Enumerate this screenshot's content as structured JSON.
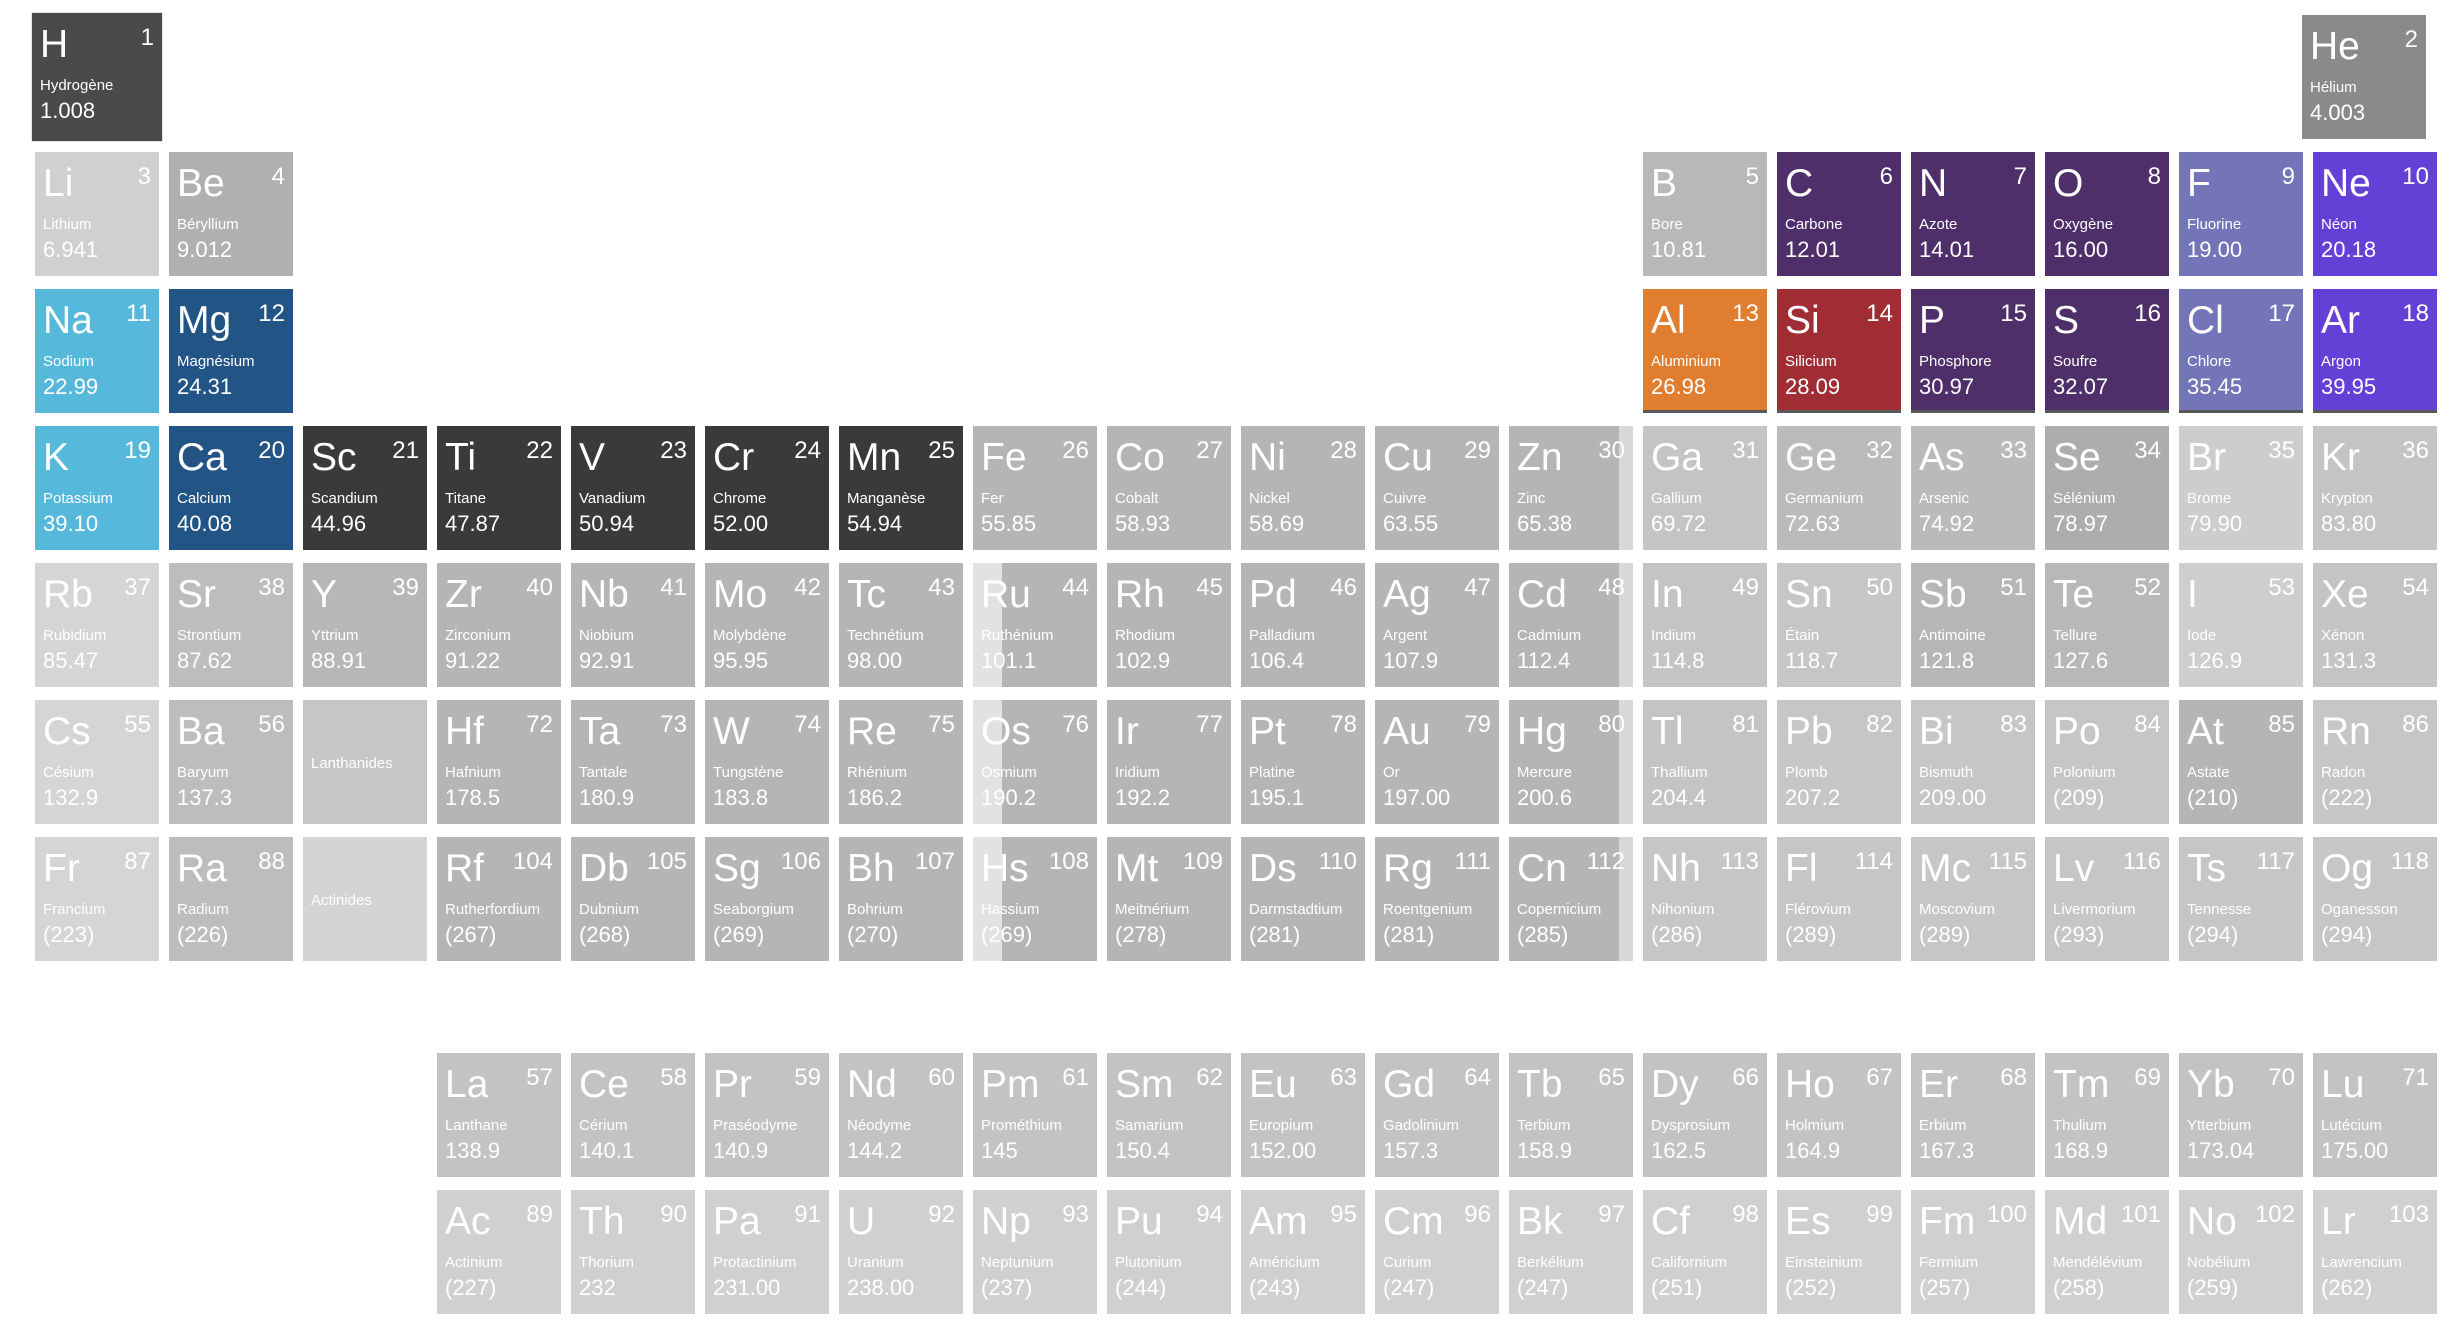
{
  "placeholders": {
    "lanthanides": "Lanthanides",
    "actinides": "Actinides"
  },
  "elements": [
    {
      "n": "1",
      "sym": "H",
      "name": "Hydrogène",
      "mass": "1.008",
      "g": 1,
      "p": 1,
      "color": "#4a4a4a"
    },
    {
      "n": "2",
      "sym": "He",
      "name": "Hélium",
      "mass": "4.003",
      "g": 18,
      "p": 1,
      "color": "#8a8a8a"
    },
    {
      "n": "3",
      "sym": "Li",
      "name": "Lithium",
      "mass": "6.941",
      "g": 1,
      "p": 2,
      "color": "#d0d0d0"
    },
    {
      "n": "4",
      "sym": "Be",
      "name": "Béryllium",
      "mass": "9.012",
      "g": 2,
      "p": 2,
      "color": "#b0b0b0"
    },
    {
      "n": "5",
      "sym": "B",
      "name": "Bore",
      "mass": "10.81",
      "g": 13,
      "p": 2,
      "color": "#b8b8b8"
    },
    {
      "n": "6",
      "sym": "C",
      "name": "Carbone",
      "mass": "12.01",
      "g": 14,
      "p": 2,
      "color": "#4e2f6a"
    },
    {
      "n": "7",
      "sym": "N",
      "name": "Azote",
      "mass": "14.01",
      "g": 15,
      "p": 2,
      "color": "#4e2f6a"
    },
    {
      "n": "8",
      "sym": "O",
      "name": "Oxygène",
      "mass": "16.00",
      "g": 16,
      "p": 2,
      "color": "#4e2f6a"
    },
    {
      "n": "9",
      "sym": "F",
      "name": "Fluorine",
      "mass": "19.00",
      "g": 17,
      "p": 2,
      "color": "#7474b8"
    },
    {
      "n": "10",
      "sym": "Ne",
      "name": "Néon",
      "mass": "20.18",
      "g": 18,
      "p": 2,
      "color": "#6440d6"
    },
    {
      "n": "11",
      "sym": "Na",
      "name": "Sodium",
      "mass": "22.99",
      "g": 1,
      "p": 3,
      "color": "#56b8db"
    },
    {
      "n": "12",
      "sym": "Mg",
      "name": "Magnésium",
      "mass": "24.31",
      "g": 2,
      "p": 3,
      "color": "#225486"
    },
    {
      "n": "13",
      "sym": "Al",
      "name": "Aluminium",
      "mass": "26.98",
      "g": 13,
      "p": 3,
      "color": "#e07d2f"
    },
    {
      "n": "14",
      "sym": "Si",
      "name": "Silicium",
      "mass": "28.09",
      "g": 14,
      "p": 3,
      "color": "#a02d33"
    },
    {
      "n": "15",
      "sym": "P",
      "name": "Phosphore",
      "mass": "30.97",
      "g": 15,
      "p": 3,
      "color": "#4e2f6a"
    },
    {
      "n": "16",
      "sym": "S",
      "name": "Soufre",
      "mass": "32.07",
      "g": 16,
      "p": 3,
      "color": "#4e2f6a"
    },
    {
      "n": "17",
      "sym": "Cl",
      "name": "Chlore",
      "mass": "35.45",
      "g": 17,
      "p": 3,
      "color": "#7474b8"
    },
    {
      "n": "18",
      "sym": "Ar",
      "name": "Argon",
      "mass": "39.95",
      "g": 18,
      "p": 3,
      "color": "#6440d6"
    },
    {
      "n": "19",
      "sym": "K",
      "name": "Potassium",
      "mass": "39.10",
      "g": 1,
      "p": 4,
      "color": "#56b8db"
    },
    {
      "n": "20",
      "sym": "Ca",
      "name": "Calcium",
      "mass": "40.08",
      "g": 2,
      "p": 4,
      "color": "#225486"
    },
    {
      "n": "21",
      "sym": "Sc",
      "name": "Scandium",
      "mass": "44.96",
      "g": 3,
      "p": 4,
      "color": "#3a3a3c"
    },
    {
      "n": "22",
      "sym": "Ti",
      "name": "Titane",
      "mass": "47.87",
      "g": 4,
      "p": 4,
      "color": "#3a3a3c"
    },
    {
      "n": "23",
      "sym": "V",
      "name": "Vanadium",
      "mass": "50.94",
      "g": 5,
      "p": 4,
      "color": "#3a3a3c"
    },
    {
      "n": "24",
      "sym": "Cr",
      "name": "Chrome",
      "mass": "52.00",
      "g": 6,
      "p": 4,
      "color": "#3a3a3c"
    },
    {
      "n": "25",
      "sym": "Mn",
      "name": "Manganèse",
      "mass": "54.94",
      "g": 7,
      "p": 4,
      "color": "#3a3a3c"
    },
    {
      "n": "26",
      "sym": "Fe",
      "name": "Fer",
      "mass": "55.85",
      "g": 8,
      "p": 4,
      "color": "#b5b5b5"
    },
    {
      "n": "27",
      "sym": "Co",
      "name": "Cobalt",
      "mass": "58.93",
      "g": 9,
      "p": 4,
      "color": "#b5b5b5"
    },
    {
      "n": "28",
      "sym": "Ni",
      "name": "Nickel",
      "mass": "58.69",
      "g": 10,
      "p": 4,
      "color": "#b5b5b5"
    },
    {
      "n": "29",
      "sym": "Cu",
      "name": "Cuivre",
      "mass": "63.55",
      "g": 11,
      "p": 4,
      "color": "#b5b5b5"
    },
    {
      "n": "30",
      "sym": "Zn",
      "name": "Zinc",
      "mass": "65.38",
      "g": 12,
      "p": 4,
      "color": "#b5b5b5"
    },
    {
      "n": "31",
      "sym": "Ga",
      "name": "Gallium",
      "mass": "69.72",
      "g": 13,
      "p": 4,
      "color": "#c4c4c4"
    },
    {
      "n": "32",
      "sym": "Ge",
      "name": "Germanium",
      "mass": "72.63",
      "g": 14,
      "p": 4,
      "color": "#bbbbbb"
    },
    {
      "n": "33",
      "sym": "As",
      "name": "Arsenic",
      "mass": "74.92",
      "g": 15,
      "p": 4,
      "color": "#bababa"
    },
    {
      "n": "34",
      "sym": "Se",
      "name": "Sélénium",
      "mass": "78.97",
      "g": 16,
      "p": 4,
      "color": "#adadad"
    },
    {
      "n": "35",
      "sym": "Br",
      "name": "Brome",
      "mass": "79.90",
      "g": 17,
      "p": 4,
      "color": "#cdcdcd"
    },
    {
      "n": "36",
      "sym": "Kr",
      "name": "Krypton",
      "mass": "83.80",
      "g": 18,
      "p": 4,
      "color": "#c4c4c4"
    },
    {
      "n": "37",
      "sym": "Rb",
      "name": "Rubidium",
      "mass": "85.47",
      "g": 1,
      "p": 5,
      "color": "#d5d5d5"
    },
    {
      "n": "38",
      "sym": "Sr",
      "name": "Strontium",
      "mass": "87.62",
      "g": 2,
      "p": 5,
      "color": "#bdbdbd"
    },
    {
      "n": "39",
      "sym": "Y",
      "name": "Yttrium",
      "mass": "88.91",
      "g": 3,
      "p": 5,
      "color": "#b7b7b7"
    },
    {
      "n": "40",
      "sym": "Zr",
      "name": "Zirconium",
      "mass": "91.22",
      "g": 4,
      "p": 5,
      "color": "#b5b5b5"
    },
    {
      "n": "41",
      "sym": "Nb",
      "name": "Niobium",
      "mass": "92.91",
      "g": 5,
      "p": 5,
      "color": "#b5b5b5"
    },
    {
      "n": "42",
      "sym": "Mo",
      "name": "Molybdène",
      "mass": "95.95",
      "g": 6,
      "p": 5,
      "color": "#b5b5b5"
    },
    {
      "n": "43",
      "sym": "Tc",
      "name": "Technétium",
      "mass": "98.00",
      "g": 7,
      "p": 5,
      "color": "#b5b5b5"
    },
    {
      "n": "44",
      "sym": "Ru",
      "name": "Ruthénium",
      "mass": "101.1",
      "g": 8,
      "p": 5,
      "color": "#b5b5b5"
    },
    {
      "n": "45",
      "sym": "Rh",
      "name": "Rhodium",
      "mass": "102.9",
      "g": 9,
      "p": 5,
      "color": "#b5b5b5"
    },
    {
      "n": "46",
      "sym": "Pd",
      "name": "Palladium",
      "mass": "106.4",
      "g": 10,
      "p": 5,
      "color": "#b5b5b5"
    },
    {
      "n": "47",
      "sym": "Ag",
      "name": "Argent",
      "mass": "107.9",
      "g": 11,
      "p": 5,
      "color": "#b5b5b5"
    },
    {
      "n": "48",
      "sym": "Cd",
      "name": "Cadmium",
      "mass": "112.4",
      "g": 12,
      "p": 5,
      "color": "#b5b5b5"
    },
    {
      "n": "49",
      "sym": "In",
      "name": "Indium",
      "mass": "114.8",
      "g": 13,
      "p": 5,
      "color": "#c4c4c4"
    },
    {
      "n": "50",
      "sym": "Sn",
      "name": "Étain",
      "mass": "118.7",
      "g": 14,
      "p": 5,
      "color": "#c6c6c6"
    },
    {
      "n": "51",
      "sym": "Sb",
      "name": "Antimoine",
      "mass": "121.8",
      "g": 15,
      "p": 5,
      "color": "#b6b6b6"
    },
    {
      "n": "52",
      "sym": "Te",
      "name": "Tellure",
      "mass": "127.6",
      "g": 16,
      "p": 5,
      "color": "#b8b8b8"
    },
    {
      "n": "53",
      "sym": "I",
      "name": "Iode",
      "mass": "126.9",
      "g": 17,
      "p": 5,
      "color": "#cecece"
    },
    {
      "n": "54",
      "sym": "Xe",
      "name": "Xénon",
      "mass": "131.3",
      "g": 18,
      "p": 5,
      "color": "#c4c4c4"
    },
    {
      "n": "55",
      "sym": "Cs",
      "name": "Césium",
      "mass": "132.9",
      "g": 1,
      "p": 6,
      "color": "#d5d5d5"
    },
    {
      "n": "56",
      "sym": "Ba",
      "name": "Baryum",
      "mass": "137.3",
      "g": 2,
      "p": 6,
      "color": "#bdbdbd"
    },
    {
      "n": "57",
      "sym": "La",
      "name": "Lanthane",
      "mass": "138.9",
      "series": "lanthanide",
      "color": "#c3c3c3"
    },
    {
      "n": "58",
      "sym": "Ce",
      "name": "Cérium",
      "mass": "140.1",
      "series": "lanthanide",
      "color": "#c3c3c3"
    },
    {
      "n": "59",
      "sym": "Pr",
      "name": "Praséodyme",
      "mass": "140.9",
      "series": "lanthanide",
      "color": "#c3c3c3"
    },
    {
      "n": "60",
      "sym": "Nd",
      "name": "Néodyme",
      "mass": "144.2",
      "series": "lanthanide",
      "color": "#c3c3c3"
    },
    {
      "n": "61",
      "sym": "Pm",
      "name": "Prométhium",
      "mass": "145",
      "series": "lanthanide",
      "color": "#c3c3c3"
    },
    {
      "n": "62",
      "sym": "Sm",
      "name": "Samarium",
      "mass": "150.4",
      "series": "lanthanide",
      "color": "#c3c3c3"
    },
    {
      "n": "63",
      "sym": "Eu",
      "name": "Europium",
      "mass": "152.00",
      "series": "lanthanide",
      "color": "#c3c3c3"
    },
    {
      "n": "64",
      "sym": "Gd",
      "name": "Gadolinium",
      "mass": "157.3",
      "series": "lanthanide",
      "color": "#c3c3c3"
    },
    {
      "n": "65",
      "sym": "Tb",
      "name": "Terbium",
      "mass": "158.9",
      "series": "lanthanide",
      "color": "#c3c3c3"
    },
    {
      "n": "66",
      "sym": "Dy",
      "name": "Dysprosium",
      "mass": "162.5",
      "series": "lanthanide",
      "color": "#c3c3c3"
    },
    {
      "n": "67",
      "sym": "Ho",
      "name": "Holmium",
      "mass": "164.9",
      "series": "lanthanide",
      "color": "#c3c3c3"
    },
    {
      "n": "68",
      "sym": "Er",
      "name": "Erbium",
      "mass": "167.3",
      "series": "lanthanide",
      "color": "#c3c3c3"
    },
    {
      "n": "69",
      "sym": "Tm",
      "name": "Thulium",
      "mass": "168.9",
      "series": "lanthanide",
      "color": "#c3c3c3"
    },
    {
      "n": "70",
      "sym": "Yb",
      "name": "Ytterbium",
      "mass": "173.04",
      "series": "lanthanide",
      "color": "#c3c3c3"
    },
    {
      "n": "71",
      "sym": "Lu",
      "name": "Lutécium",
      "mass": "175.00",
      "series": "lanthanide",
      "color": "#c3c3c3"
    },
    {
      "n": "72",
      "sym": "Hf",
      "name": "Hafnium",
      "mass": "178.5",
      "g": 4,
      "p": 6,
      "color": "#b5b5b5"
    },
    {
      "n": "73",
      "sym": "Ta",
      "name": "Tantale",
      "mass": "180.9",
      "g": 5,
      "p": 6,
      "color": "#b5b5b5"
    },
    {
      "n": "74",
      "sym": "W",
      "name": "Tungstène",
      "mass": "183.8",
      "g": 6,
      "p": 6,
      "color": "#b5b5b5"
    },
    {
      "n": "75",
      "sym": "Re",
      "name": "Rhénium",
      "mass": "186.2",
      "g": 7,
      "p": 6,
      "color": "#b5b5b5"
    },
    {
      "n": "76",
      "sym": "Os",
      "name": "Osmium",
      "mass": "190.2",
      "g": 8,
      "p": 6,
      "color": "#b5b5b5"
    },
    {
      "n": "77",
      "sym": "Ir",
      "name": "Iridium",
      "mass": "192.2",
      "g": 9,
      "p": 6,
      "color": "#b5b5b5"
    },
    {
      "n": "78",
      "sym": "Pt",
      "name": "Platine",
      "mass": "195.1",
      "g": 10,
      "p": 6,
      "color": "#b5b5b5"
    },
    {
      "n": "79",
      "sym": "Au",
      "name": "Or",
      "mass": "197.00",
      "g": 11,
      "p": 6,
      "color": "#b5b5b5"
    },
    {
      "n": "80",
      "sym": "Hg",
      "name": "Mercure",
      "mass": "200.6",
      "g": 12,
      "p": 6,
      "color": "#b5b5b5"
    },
    {
      "n": "81",
      "sym": "Tl",
      "name": "Thallium",
      "mass": "204.4",
      "g": 13,
      "p": 6,
      "color": "#c4c4c4"
    },
    {
      "n": "82",
      "sym": "Pb",
      "name": "Plomb",
      "mass": "207.2",
      "g": 14,
      "p": 6,
      "color": "#c6c6c6"
    },
    {
      "n": "83",
      "sym": "Bi",
      "name": "Bismuth",
      "mass": "209.00",
      "g": 15,
      "p": 6,
      "color": "#c6c6c6"
    },
    {
      "n": "84",
      "sym": "Po",
      "name": "Polonium",
      "mass": "(209)",
      "g": 16,
      "p": 6,
      "color": "#c6c6c6"
    },
    {
      "n": "85",
      "sym": "At",
      "name": "Astate",
      "mass": "(210)",
      "g": 17,
      "p": 6,
      "color": "#b5b5b5"
    },
    {
      "n": "86",
      "sym": "Rn",
      "name": "Radon",
      "mass": "(222)",
      "g": 18,
      "p": 6,
      "color": "#c6c6c6"
    },
    {
      "n": "87",
      "sym": "Fr",
      "name": "Francium",
      "mass": "(223)",
      "g": 1,
      "p": 7,
      "color": "#d5d5d5"
    },
    {
      "n": "88",
      "sym": "Ra",
      "name": "Radium",
      "mass": "(226)",
      "g": 2,
      "p": 7,
      "color": "#bdbdbd"
    },
    {
      "n": "89",
      "sym": "Ac",
      "name": "Actinium",
      "mass": "(227)",
      "series": "actinide",
      "color": "#d0d0d0"
    },
    {
      "n": "90",
      "sym": "Th",
      "name": "Thorium",
      "mass": "232",
      "series": "actinide",
      "color": "#d0d0d0"
    },
    {
      "n": "91",
      "sym": "Pa",
      "name": "Protactinium",
      "mass": "231.00",
      "series": "actinide",
      "color": "#d0d0d0"
    },
    {
      "n": "92",
      "sym": "U",
      "name": "Uranium",
      "mass": "238.00",
      "series": "actinide",
      "color": "#d0d0d0"
    },
    {
      "n": "93",
      "sym": "Np",
      "name": "Neptunium",
      "mass": "(237)",
      "series": "actinide",
      "color": "#d0d0d0"
    },
    {
      "n": "94",
      "sym": "Pu",
      "name": "Plutonium",
      "mass": "(244)",
      "series": "actinide",
      "color": "#d0d0d0"
    },
    {
      "n": "95",
      "sym": "Am",
      "name": "Américium",
      "mass": "(243)",
      "series": "actinide",
      "color": "#d0d0d0"
    },
    {
      "n": "96",
      "sym": "Cm",
      "name": "Curium",
      "mass": "(247)",
      "series": "actinide",
      "color": "#d0d0d0"
    },
    {
      "n": "97",
      "sym": "Bk",
      "name": "Berkélium",
      "mass": "(247)",
      "series": "actinide",
      "color": "#d0d0d0"
    },
    {
      "n": "98",
      "sym": "Cf",
      "name": "Californium",
      "mass": "(251)",
      "series": "actinide",
      "color": "#d0d0d0"
    },
    {
      "n": "99",
      "sym": "Es",
      "name": "Einsteinium",
      "mass": "(252)",
      "series": "actinide",
      "color": "#d0d0d0"
    },
    {
      "n": "100",
      "sym": "Fm",
      "name": "Fermium",
      "mass": "(257)",
      "series": "actinide",
      "color": "#d0d0d0"
    },
    {
      "n": "101",
      "sym": "Md",
      "name": "Mendélévium",
      "mass": "(258)",
      "series": "actinide",
      "color": "#d0d0d0"
    },
    {
      "n": "102",
      "sym": "No",
      "name": "Nobélium",
      "mass": "(259)",
      "series": "actinide",
      "color": "#d0d0d0"
    },
    {
      "n": "103",
      "sym": "Lr",
      "name": "Lawrencium",
      "mass": "(262)",
      "series": "actinide",
      "color": "#d0d0d0"
    },
    {
      "n": "104",
      "sym": "Rf",
      "name": "Rutherfordium",
      "mass": "(267)",
      "g": 4,
      "p": 7,
      "color": "#b5b5b5"
    },
    {
      "n": "105",
      "sym": "Db",
      "name": "Dubnium",
      "mass": "(268)",
      "g": 5,
      "p": 7,
      "color": "#b5b5b5"
    },
    {
      "n": "106",
      "sym": "Sg",
      "name": "Seaborgium",
      "mass": "(269)",
      "g": 6,
      "p": 7,
      "color": "#b5b5b5"
    },
    {
      "n": "107",
      "sym": "Bh",
      "name": "Bohrium",
      "mass": "(270)",
      "g": 7,
      "p": 7,
      "color": "#b5b5b5"
    },
    {
      "n": "108",
      "sym": "Hs",
      "name": "Hassium",
      "mass": "(269)",
      "g": 8,
      "p": 7,
      "color": "#b5b5b5"
    },
    {
      "n": "109",
      "sym": "Mt",
      "name": "Meitnérium",
      "mass": "(278)",
      "g": 9,
      "p": 7,
      "color": "#b5b5b5"
    },
    {
      "n": "110",
      "sym": "Ds",
      "name": "Darmstadtium",
      "mass": "(281)",
      "g": 10,
      "p": 7,
      "color": "#b5b5b5"
    },
    {
      "n": "111",
      "sym": "Rg",
      "name": "Roentgenium",
      "mass": "(281)",
      "g": 11,
      "p": 7,
      "color": "#b5b5b5"
    },
    {
      "n": "112",
      "sym": "Cn",
      "name": "Copernicium",
      "mass": "(285)",
      "g": 12,
      "p": 7,
      "color": "#b5b5b5"
    },
    {
      "n": "113",
      "sym": "Nh",
      "name": "Nihonium",
      "mass": "(286)",
      "g": 13,
      "p": 7,
      "color": "#c6c6c6"
    },
    {
      "n": "114",
      "sym": "Fl",
      "name": "Flérovium",
      "mass": "(289)",
      "g": 14,
      "p": 7,
      "color": "#c6c6c6"
    },
    {
      "n": "115",
      "sym": "Mc",
      "name": "Moscovium",
      "mass": "(289)",
      "g": 15,
      "p": 7,
      "color": "#c6c6c6"
    },
    {
      "n": "116",
      "sym": "Lv",
      "name": "Livermorium",
      "mass": "(293)",
      "g": 16,
      "p": 7,
      "color": "#c6c6c6"
    },
    {
      "n": "117",
      "sym": "Ts",
      "name": "Tennesse",
      "mass": "(294)",
      "g": 17,
      "p": 7,
      "color": "#c6c6c6"
    },
    {
      "n": "118",
      "sym": "Og",
      "name": "Oganesson",
      "mass": "(294)",
      "g": 18,
      "p": 7,
      "color": "#c6c6c6"
    }
  ]
}
